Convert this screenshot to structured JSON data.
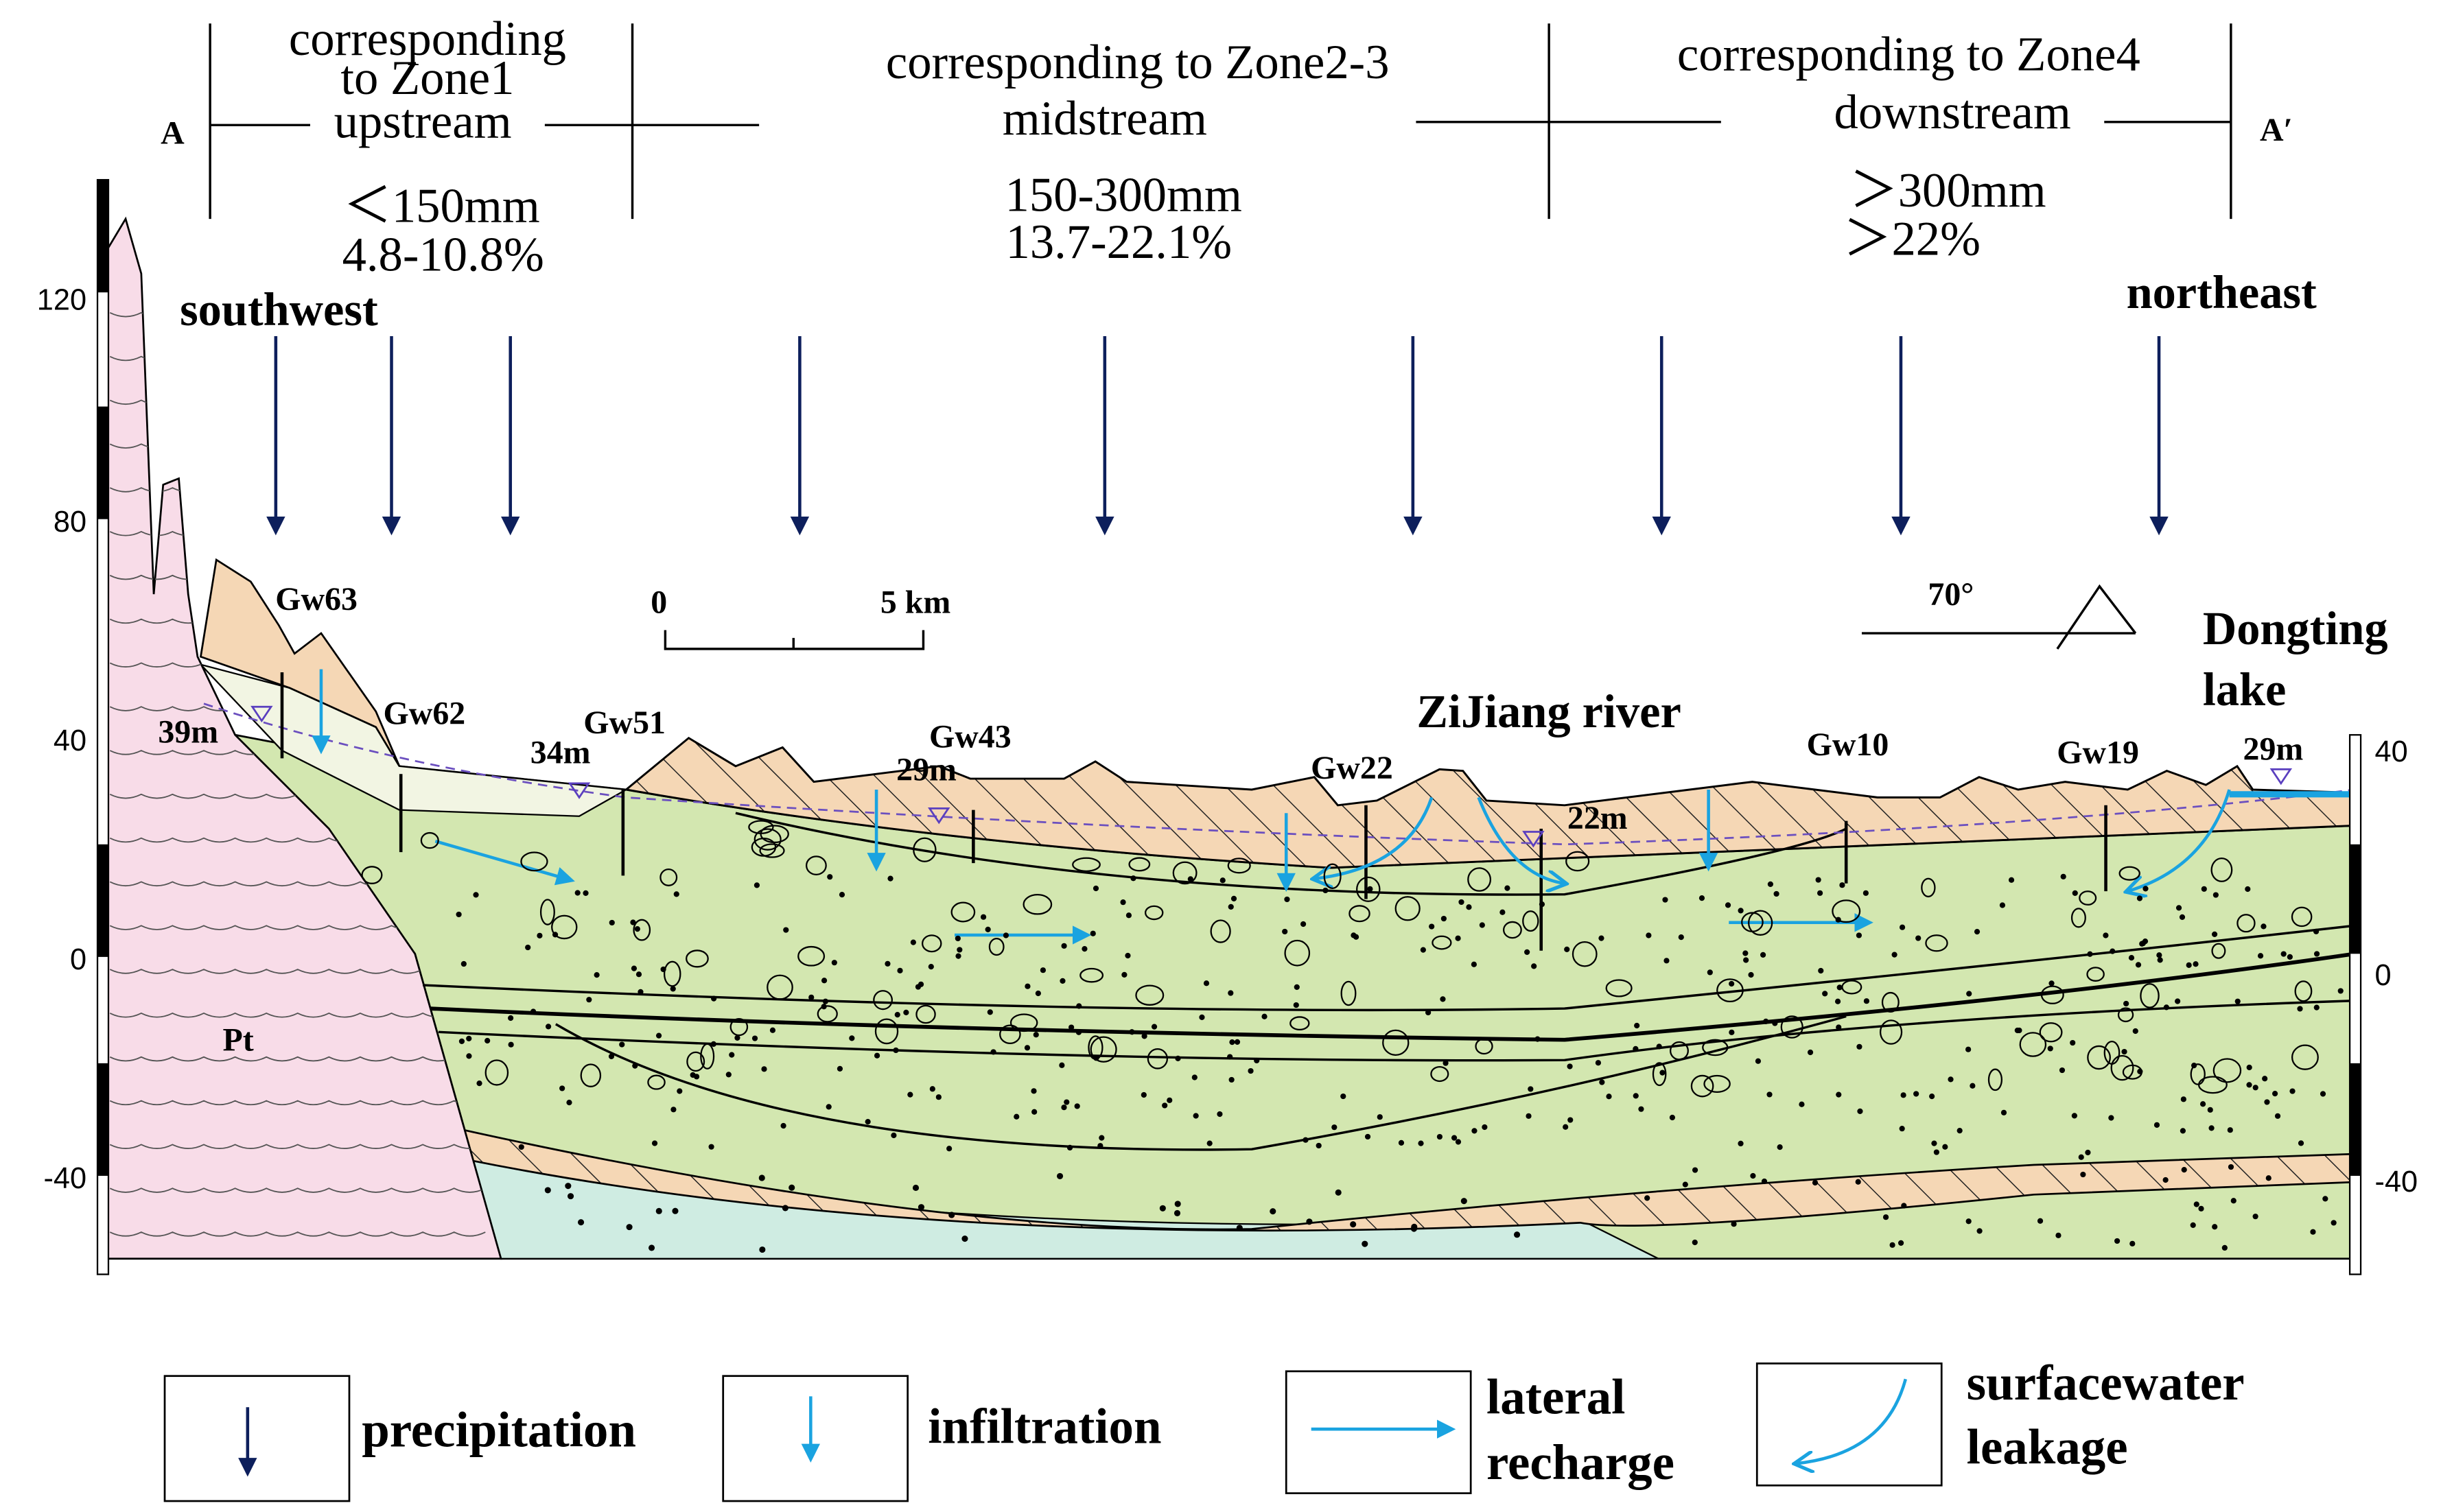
{
  "header": {
    "left_end": "A",
    "right_end": "A′",
    "zones": [
      {
        "title_lines": [
          "corresponding",
          "to Zone1"
        ],
        "stream": "upstream",
        "precipitation": "＜150mm",
        "ratio": "4.8-10.8%"
      },
      {
        "title_lines": [
          "corresponding to Zone2-3"
        ],
        "stream": "midstream",
        "precipitation": "150-300mm",
        "ratio": "13.7-22.1%"
      },
      {
        "title_lines": [
          "corresponding to Zone4"
        ],
        "stream": "downstream",
        "precipitation": "＞300mm",
        "ratio": "＞22%"
      }
    ]
  },
  "directions": {
    "left": "southwest",
    "right": "northeast"
  },
  "scale_bar": {
    "start": "0",
    "end": "5 km",
    "dip": "70°"
  },
  "wells": [
    "Gw63",
    "Gw62",
    "Gw51",
    "Gw43",
    "Gw22",
    "Gw10",
    "Gw19"
  ],
  "water_levels": [
    "39m",
    "34m",
    "29m",
    "22m",
    "29m"
  ],
  "features": {
    "river": "ZiJiang river",
    "lake_lines": [
      "Dongting",
      "lake"
    ],
    "bedrock": "Pt"
  },
  "axis": {
    "left_ticks": [
      "120",
      "80",
      "40",
      "0",
      "-40"
    ],
    "right_ticks": [
      "40",
      "0",
      "-40"
    ]
  },
  "legend": [
    {
      "label_lines": [
        "precipitation"
      ]
    },
    {
      "label_lines": [
        "infiltration"
      ]
    },
    {
      "label_lines": [
        "lateral",
        "recharge"
      ]
    },
    {
      "label_lines": [
        "surfacewater",
        "leakage"
      ]
    }
  ]
}
